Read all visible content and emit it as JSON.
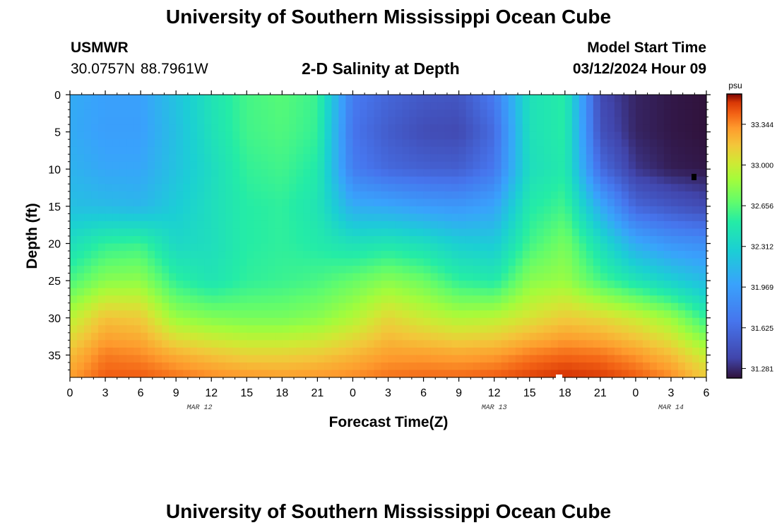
{
  "header": {
    "title": "University of Southern Mississippi Ocean Cube",
    "station": "USMWR",
    "coords": "30.0757N  88.7961W",
    "subtitle": "2-D Salinity at Depth",
    "start_label": "Model Start Time",
    "start_value": "03/12/2024 Hour 09",
    "footer_title": "University of Southern Mississippi Ocean Cube"
  },
  "chart_data": {
    "type": "heatmap",
    "title": "2-D Salinity at Depth",
    "xlabel": "Forecast Time(Z)",
    "ylabel": "Depth (ft)",
    "x_ticks": [
      "0",
      "3",
      "6",
      "9",
      "12",
      "15",
      "18",
      "21",
      "0",
      "3",
      "6",
      "9",
      "12",
      "15",
      "18",
      "21",
      "0",
      "3",
      "6"
    ],
    "x_hours": [
      0,
      3,
      6,
      9,
      12,
      15,
      18,
      21,
      24,
      27,
      30,
      33,
      36,
      39,
      42,
      45,
      48,
      51,
      54
    ],
    "x_range_hours": [
      0,
      54
    ],
    "date_labels": [
      {
        "text": "MAR 12",
        "hour": 11
      },
      {
        "text": "MAR 13",
        "hour": 36
      },
      {
        "text": "MAR 14",
        "hour": 51
      }
    ],
    "y_ticks": [
      "0",
      "5",
      "10",
      "15",
      "20",
      "25",
      "30",
      "35"
    ],
    "y_values": [
      0,
      5,
      10,
      15,
      20,
      25,
      30,
      35
    ],
    "y_range": [
      0,
      38
    ],
    "y_inverted": true,
    "colorbar": {
      "unit": "psu",
      "min": 31.2,
      "max": 33.6,
      "ticks": [
        "33.344",
        "33.000",
        "32.656",
        "32.312",
        "31.969",
        "31.625",
        "31.281"
      ],
      "tick_values": [
        33.344,
        33.0,
        32.656,
        32.312,
        31.969,
        31.625,
        31.281
      ]
    },
    "grid_depths_ft": [
      0,
      5,
      10,
      15,
      20,
      25,
      30,
      35,
      38
    ],
    "grid_hours": [
      0,
      3,
      6,
      9,
      12,
      15,
      18,
      21,
      24,
      27,
      30,
      33,
      36,
      39,
      42,
      45,
      48,
      51,
      54
    ],
    "salinity_psu": [
      [
        32.05,
        31.98,
        31.98,
        32.2,
        32.44,
        32.61,
        32.66,
        32.58,
        31.72,
        31.58,
        31.5,
        31.48,
        31.72,
        32.42,
        32.52,
        31.4,
        31.26,
        31.22,
        31.2
      ],
      [
        32.05,
        31.97,
        31.97,
        32.18,
        32.42,
        32.6,
        32.64,
        32.56,
        31.68,
        31.52,
        31.42,
        31.4,
        31.62,
        32.42,
        32.52,
        31.45,
        31.26,
        31.22,
        31.2
      ],
      [
        32.1,
        32.02,
        32.02,
        32.2,
        32.38,
        32.56,
        32.6,
        32.5,
        31.74,
        31.6,
        31.55,
        31.54,
        31.7,
        32.4,
        32.5,
        31.62,
        31.32,
        31.24,
        31.22
      ],
      [
        32.18,
        32.15,
        32.12,
        32.26,
        32.4,
        32.52,
        32.55,
        32.45,
        32.06,
        32.02,
        31.95,
        31.92,
        32.0,
        32.5,
        32.6,
        32.05,
        31.58,
        31.48,
        31.4
      ],
      [
        32.4,
        32.55,
        32.58,
        32.35,
        32.4,
        32.52,
        32.55,
        32.5,
        32.42,
        32.46,
        32.4,
        32.28,
        32.25,
        32.6,
        32.75,
        32.4,
        32.05,
        31.9,
        31.85
      ],
      [
        32.62,
        32.8,
        32.82,
        32.55,
        32.45,
        32.55,
        32.58,
        32.62,
        32.7,
        32.8,
        32.72,
        32.55,
        32.5,
        32.8,
        32.85,
        32.62,
        32.45,
        32.3,
        32.15
      ],
      [
        32.95,
        33.18,
        33.15,
        32.85,
        32.78,
        32.75,
        32.75,
        32.8,
        32.92,
        33.1,
        33.0,
        32.92,
        32.95,
        33.05,
        33.15,
        33.1,
        33.0,
        32.85,
        32.55
      ],
      [
        33.2,
        33.38,
        33.35,
        33.25,
        33.18,
        33.12,
        33.12,
        33.15,
        33.22,
        33.3,
        33.3,
        33.28,
        33.3,
        33.38,
        33.42,
        33.4,
        33.32,
        33.2,
        32.98
      ],
      [
        33.3,
        33.45,
        33.45,
        33.4,
        33.35,
        33.32,
        33.3,
        33.32,
        33.35,
        33.4,
        33.42,
        33.42,
        33.45,
        33.5,
        33.55,
        33.52,
        33.45,
        33.35,
        33.15
      ]
    ]
  }
}
